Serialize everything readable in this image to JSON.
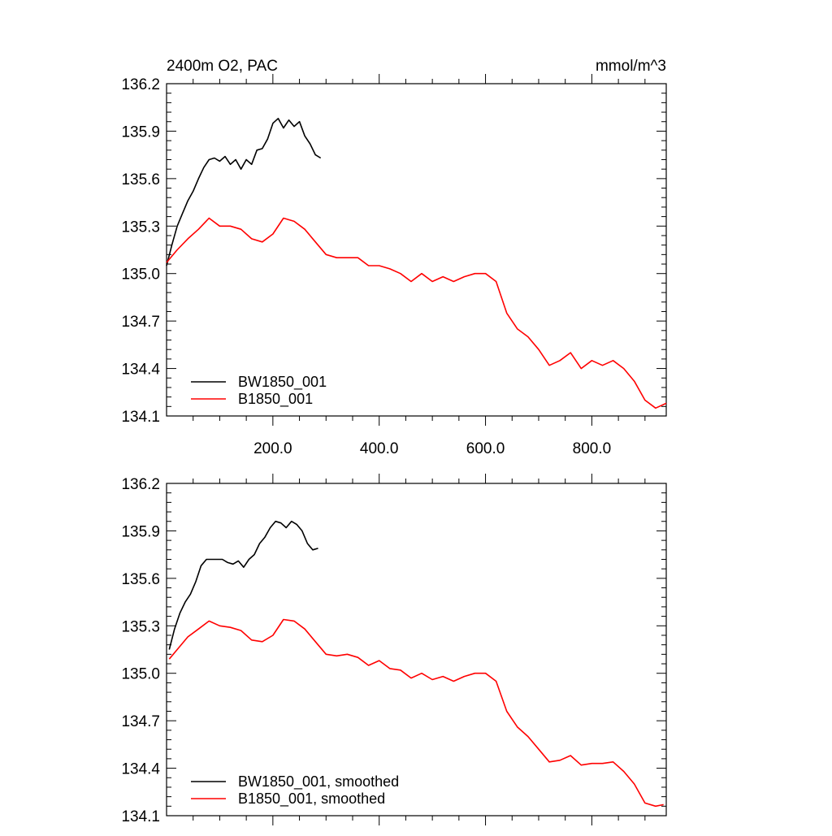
{
  "chart_data": [
    {
      "type": "line",
      "title": "2400m O2, PAC",
      "units_label": "mmol/m^3",
      "xlim": [
        0,
        940
      ],
      "ylim": [
        134.1,
        136.2
      ],
      "x_ticks": [
        200,
        400,
        600,
        800
      ],
      "x_tick_labels": [
        "200.0",
        "400.0",
        "600.0",
        "800.0"
      ],
      "y_ticks": [
        134.1,
        134.4,
        134.7,
        135.0,
        135.3,
        135.6,
        135.9,
        136.2
      ],
      "y_tick_labels": [
        "134.1",
        "134.4",
        "134.7",
        "135.0",
        "135.3",
        "135.6",
        "135.9",
        "136.2"
      ],
      "legend": "bottom-left",
      "series": [
        {
          "name": "BW1850_001",
          "color": "#000000",
          "x": [
            0,
            10,
            20,
            30,
            40,
            50,
            60,
            70,
            80,
            90,
            100,
            110,
            120,
            130,
            140,
            150,
            160,
            170,
            180,
            190,
            200,
            210,
            220,
            230,
            240,
            250,
            260,
            270,
            280,
            290
          ],
          "y": [
            135.05,
            135.18,
            135.3,
            135.38,
            135.46,
            135.52,
            135.6,
            135.67,
            135.72,
            135.73,
            135.71,
            135.74,
            135.69,
            135.72,
            135.66,
            135.72,
            135.69,
            135.78,
            135.79,
            135.85,
            135.95,
            135.98,
            135.92,
            135.97,
            135.93,
            135.96,
            135.87,
            135.82,
            135.75,
            135.73
          ]
        },
        {
          "name": "B1850_001",
          "color": "#ff0000",
          "x": [
            0,
            20,
            40,
            60,
            80,
            100,
            120,
            140,
            160,
            180,
            200,
            220,
            240,
            260,
            280,
            300,
            320,
            340,
            360,
            380,
            400,
            420,
            440,
            460,
            480,
            500,
            520,
            540,
            560,
            580,
            600,
            620,
            640,
            660,
            680,
            700,
            720,
            740,
            760,
            780,
            800,
            820,
            840,
            860,
            880,
            900,
            920,
            940
          ],
          "y": [
            135.07,
            135.15,
            135.22,
            135.28,
            135.35,
            135.3,
            135.3,
            135.28,
            135.22,
            135.2,
            135.25,
            135.35,
            135.33,
            135.28,
            135.2,
            135.12,
            135.1,
            135.1,
            135.1,
            135.05,
            135.05,
            135.03,
            135.0,
            134.95,
            135.0,
            134.95,
            134.98,
            134.95,
            134.98,
            135.0,
            135.0,
            134.95,
            134.75,
            134.65,
            134.6,
            134.52,
            134.42,
            134.45,
            134.5,
            134.4,
            134.45,
            134.42,
            134.45,
            134.4,
            134.32,
            134.2,
            134.15,
            134.18
          ]
        }
      ]
    },
    {
      "type": "line",
      "xlim": [
        0,
        940
      ],
      "ylim": [
        134.1,
        136.2
      ],
      "x_ticks": [
        200,
        400,
        600,
        800
      ],
      "x_tick_labels": [],
      "y_ticks": [
        134.1,
        134.4,
        134.7,
        135.0,
        135.3,
        135.6,
        135.9,
        136.2
      ],
      "y_tick_labels": [
        "134.1",
        "134.4",
        "134.7",
        "135.0",
        "135.3",
        "135.6",
        "135.9",
        "136.2"
      ],
      "legend": "bottom-left",
      "series": [
        {
          "name": "BW1850_001, smoothed",
          "color": "#000000",
          "x": [
            5,
            15,
            25,
            35,
            45,
            55,
            65,
            75,
            85,
            95,
            105,
            115,
            125,
            135,
            145,
            155,
            165,
            175,
            185,
            195,
            205,
            215,
            225,
            235,
            245,
            255,
            265,
            275,
            285
          ],
          "y": [
            135.15,
            135.28,
            135.38,
            135.45,
            135.5,
            135.58,
            135.68,
            135.72,
            135.72,
            135.72,
            135.72,
            135.7,
            135.69,
            135.71,
            135.67,
            135.72,
            135.75,
            135.82,
            135.86,
            135.92,
            135.96,
            135.95,
            135.92,
            135.96,
            135.94,
            135.9,
            135.82,
            135.78,
            135.79
          ]
        },
        {
          "name": "B1850_001, smoothed",
          "color": "#ff0000",
          "x": [
            5,
            20,
            40,
            60,
            80,
            100,
            120,
            140,
            160,
            180,
            200,
            220,
            240,
            260,
            280,
            300,
            320,
            340,
            360,
            380,
            400,
            420,
            440,
            460,
            480,
            500,
            520,
            540,
            560,
            580,
            600,
            620,
            640,
            660,
            680,
            700,
            720,
            740,
            760,
            780,
            800,
            820,
            840,
            860,
            880,
            900,
            920,
            935
          ],
          "y": [
            135.09,
            135.15,
            135.23,
            135.28,
            135.33,
            135.3,
            135.29,
            135.27,
            135.21,
            135.2,
            135.24,
            135.34,
            135.33,
            135.28,
            135.2,
            135.12,
            135.11,
            135.12,
            135.1,
            135.05,
            135.08,
            135.03,
            135.02,
            134.97,
            135.0,
            134.96,
            134.98,
            134.95,
            134.98,
            135.0,
            135.0,
            134.95,
            134.76,
            134.66,
            134.6,
            134.52,
            134.44,
            134.45,
            134.48,
            134.42,
            134.43,
            134.43,
            134.44,
            134.38,
            134.3,
            134.18,
            134.16,
            134.17
          ]
        }
      ]
    }
  ]
}
